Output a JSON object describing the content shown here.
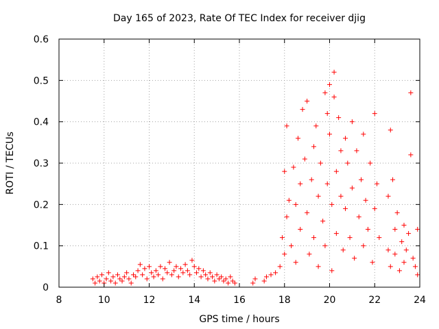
{
  "chart_data": {
    "type": "scatter",
    "title": "Day 165 of 2023, Rate Of TEC Index for receiver djig",
    "xlabel": "GPS time / hours",
    "ylabel": "ROTI / TECUs",
    "xlim": [
      8,
      24
    ],
    "ylim": [
      0,
      0.6
    ],
    "xticks": [
      "8",
      "10",
      "12",
      "14",
      "16",
      "18",
      "20",
      "22",
      "24"
    ],
    "yticks": [
      "0",
      "0.1",
      "0.2",
      "0.3",
      "0.4",
      "0.5",
      "0.6"
    ],
    "grid": true,
    "marker": "+",
    "color": "#ff0000",
    "series": [
      {
        "points": [
          [
            9.5,
            0.02
          ],
          [
            9.6,
            0.01
          ],
          [
            9.7,
            0.025
          ],
          [
            9.8,
            0.015
          ],
          [
            9.9,
            0.03
          ],
          [
            10.0,
            0.01
          ],
          [
            10.1,
            0.02
          ],
          [
            10.2,
            0.035
          ],
          [
            10.3,
            0.015
          ],
          [
            10.4,
            0.025
          ],
          [
            10.5,
            0.01
          ],
          [
            10.6,
            0.03
          ],
          [
            10.7,
            0.02
          ],
          [
            10.8,
            0.015
          ],
          [
            10.9,
            0.025
          ],
          [
            11.0,
            0.035
          ],
          [
            11.1,
            0.02
          ],
          [
            11.2,
            0.01
          ],
          [
            11.3,
            0.03
          ],
          [
            11.4,
            0.025
          ],
          [
            11.5,
            0.04
          ],
          [
            11.6,
            0.055
          ],
          [
            11.7,
            0.03
          ],
          [
            11.8,
            0.045
          ],
          [
            11.9,
            0.02
          ],
          [
            12.0,
            0.05
          ],
          [
            12.1,
            0.035
          ],
          [
            12.2,
            0.025
          ],
          [
            12.3,
            0.04
          ],
          [
            12.4,
            0.03
          ],
          [
            12.5,
            0.05
          ],
          [
            12.6,
            0.02
          ],
          [
            12.7,
            0.045
          ],
          [
            12.8,
            0.035
          ],
          [
            12.9,
            0.06
          ],
          [
            13.0,
            0.03
          ],
          [
            13.1,
            0.04
          ],
          [
            13.2,
            0.05
          ],
          [
            13.3,
            0.025
          ],
          [
            13.4,
            0.045
          ],
          [
            13.5,
            0.035
          ],
          [
            13.6,
            0.055
          ],
          [
            13.7,
            0.04
          ],
          [
            13.8,
            0.03
          ],
          [
            13.9,
            0.065
          ],
          [
            14.0,
            0.05
          ],
          [
            14.1,
            0.035
          ],
          [
            14.2,
            0.045
          ],
          [
            14.3,
            0.025
          ],
          [
            14.4,
            0.04
          ],
          [
            14.5,
            0.03
          ],
          [
            14.6,
            0.02
          ],
          [
            14.7,
            0.035
          ],
          [
            14.8,
            0.025
          ],
          [
            14.9,
            0.015
          ],
          [
            15.0,
            0.03
          ],
          [
            15.1,
            0.02
          ],
          [
            15.2,
            0.025
          ],
          [
            15.3,
            0.015
          ],
          [
            15.4,
            0.02
          ],
          [
            15.5,
            0.01
          ],
          [
            15.6,
            0.025
          ],
          [
            15.7,
            0.015
          ],
          [
            15.8,
            0.01
          ],
          [
            16.6,
            0.01
          ],
          [
            16.7,
            0.02
          ],
          [
            17.1,
            0.015
          ],
          [
            17.2,
            0.025
          ],
          [
            17.4,
            0.03
          ],
          [
            17.6,
            0.035
          ],
          [
            17.8,
            0.05
          ],
          [
            17.9,
            0.12
          ],
          [
            18.0,
            0.08
          ],
          [
            18.0,
            0.28
          ],
          [
            18.1,
            0.39
          ],
          [
            18.1,
            0.17
          ],
          [
            18.2,
            0.21
          ],
          [
            18.3,
            0.1
          ],
          [
            18.4,
            0.29
          ],
          [
            18.5,
            0.06
          ],
          [
            18.5,
            0.2
          ],
          [
            18.6,
            0.36
          ],
          [
            18.7,
            0.14
          ],
          [
            18.7,
            0.25
          ],
          [
            18.8,
            0.43
          ],
          [
            18.9,
            0.31
          ],
          [
            19.0,
            0.18
          ],
          [
            19.0,
            0.45
          ],
          [
            19.1,
            0.08
          ],
          [
            19.2,
            0.26
          ],
          [
            19.3,
            0.12
          ],
          [
            19.3,
            0.34
          ],
          [
            19.4,
            0.39
          ],
          [
            19.5,
            0.22
          ],
          [
            19.5,
            0.05
          ],
          [
            19.6,
            0.3
          ],
          [
            19.7,
            0.16
          ],
          [
            19.8,
            0.47
          ],
          [
            19.8,
            0.1
          ],
          [
            19.9,
            0.42
          ],
          [
            19.9,
            0.25
          ],
          [
            20.0,
            0.37
          ],
          [
            20.0,
            0.49
          ],
          [
            20.1,
            0.2
          ],
          [
            20.1,
            0.04
          ],
          [
            20.2,
            0.46
          ],
          [
            20.2,
            0.52
          ],
          [
            20.3,
            0.28
          ],
          [
            20.3,
            0.13
          ],
          [
            20.4,
            0.41
          ],
          [
            20.5,
            0.33
          ],
          [
            20.5,
            0.22
          ],
          [
            20.6,
            0.09
          ],
          [
            20.7,
            0.36
          ],
          [
            20.7,
            0.19
          ],
          [
            20.8,
            0.3
          ],
          [
            20.9,
            0.12
          ],
          [
            21.0,
            0.4
          ],
          [
            21.0,
            0.24
          ],
          [
            21.1,
            0.07
          ],
          [
            21.2,
            0.33
          ],
          [
            21.3,
            0.17
          ],
          [
            21.4,
            0.26
          ],
          [
            21.5,
            0.1
          ],
          [
            21.5,
            0.37
          ],
          [
            21.6,
            0.21
          ],
          [
            21.7,
            0.14
          ],
          [
            21.8,
            0.3
          ],
          [
            21.9,
            0.06
          ],
          [
            22.0,
            0.42
          ],
          [
            22.0,
            0.19
          ],
          [
            22.1,
            0.25
          ],
          [
            22.2,
            0.12
          ],
          [
            22.6,
            0.09
          ],
          [
            22.6,
            0.22
          ],
          [
            22.7,
            0.38
          ],
          [
            22.7,
            0.05
          ],
          [
            22.8,
            0.26
          ],
          [
            22.9,
            0.14
          ],
          [
            22.9,
            0.08
          ],
          [
            23.0,
            0.18
          ],
          [
            23.1,
            0.04
          ],
          [
            23.2,
            0.11
          ],
          [
            23.3,
            0.06
          ],
          [
            23.3,
            0.15
          ],
          [
            23.4,
            0.09
          ],
          [
            23.5,
            0.13
          ],
          [
            23.6,
            0.47
          ],
          [
            23.6,
            0.32
          ],
          [
            23.7,
            0.07
          ],
          [
            23.8,
            0.05
          ],
          [
            23.9,
            0.14
          ],
          [
            23.9,
            0.03
          ]
        ]
      }
    ]
  }
}
